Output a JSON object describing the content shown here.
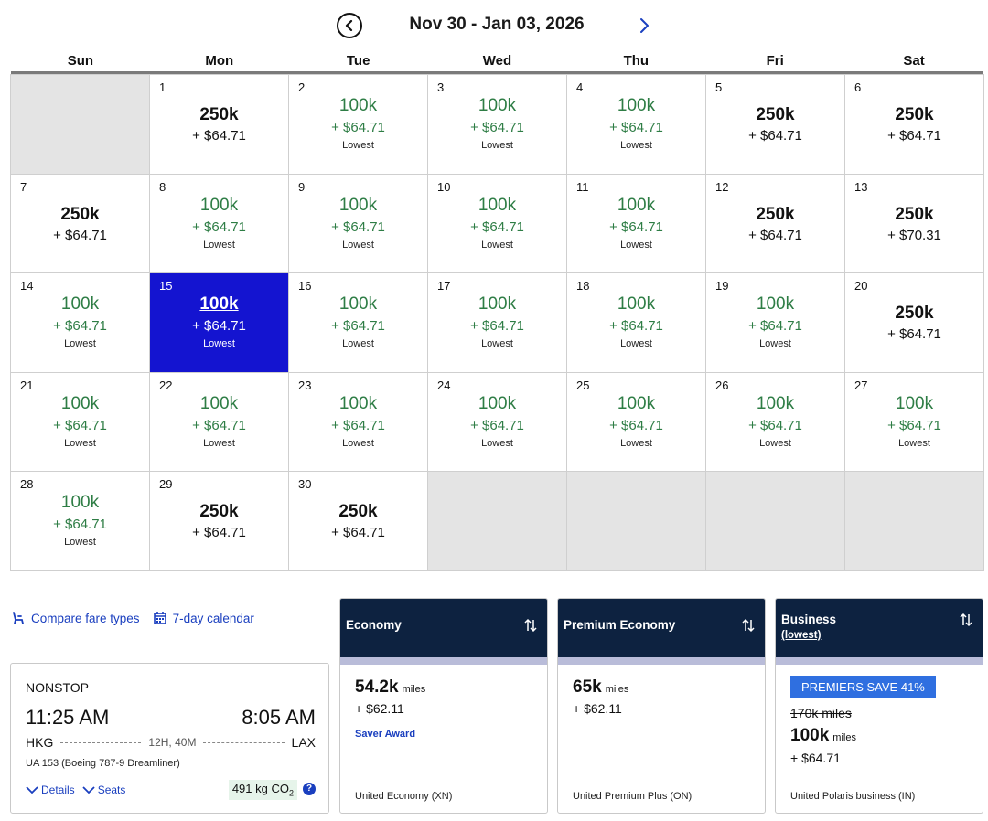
{
  "header": {
    "title": "Nov 30 - Jan 03, 2026"
  },
  "weekdays": [
    "Sun",
    "Mon",
    "Tue",
    "Wed",
    "Thu",
    "Fri",
    "Sat"
  ],
  "calendar": {
    "lowest_label": "Lowest",
    "selected_day": "15",
    "cells": [
      {
        "empty": true
      },
      {
        "day": "1",
        "miles": "250k",
        "cash": "+ $64.71",
        "lowest": false
      },
      {
        "day": "2",
        "miles": "100k",
        "cash": "+ $64.71",
        "lowest": true
      },
      {
        "day": "3",
        "miles": "100k",
        "cash": "+ $64.71",
        "lowest": true
      },
      {
        "day": "4",
        "miles": "100k",
        "cash": "+ $64.71",
        "lowest": true
      },
      {
        "day": "5",
        "miles": "250k",
        "cash": "+ $64.71",
        "lowest": false
      },
      {
        "day": "6",
        "miles": "250k",
        "cash": "+ $64.71",
        "lowest": false
      },
      {
        "day": "7",
        "miles": "250k",
        "cash": "+ $64.71",
        "lowest": false
      },
      {
        "day": "8",
        "miles": "100k",
        "cash": "+ $64.71",
        "lowest": true
      },
      {
        "day": "9",
        "miles": "100k",
        "cash": "+ $64.71",
        "lowest": true
      },
      {
        "day": "10",
        "miles": "100k",
        "cash": "+ $64.71",
        "lowest": true
      },
      {
        "day": "11",
        "miles": "100k",
        "cash": "+ $64.71",
        "lowest": true
      },
      {
        "day": "12",
        "miles": "250k",
        "cash": "+ $64.71",
        "lowest": false
      },
      {
        "day": "13",
        "miles": "250k",
        "cash": "+ $70.31",
        "lowest": false
      },
      {
        "day": "14",
        "miles": "100k",
        "cash": "+ $64.71",
        "lowest": true
      },
      {
        "day": "15",
        "miles": "100k",
        "cash": "+ $64.71",
        "lowest": true
      },
      {
        "day": "16",
        "miles": "100k",
        "cash": "+ $64.71",
        "lowest": true
      },
      {
        "day": "17",
        "miles": "100k",
        "cash": "+ $64.71",
        "lowest": true
      },
      {
        "day": "18",
        "miles": "100k",
        "cash": "+ $64.71",
        "lowest": true
      },
      {
        "day": "19",
        "miles": "100k",
        "cash": "+ $64.71",
        "lowest": true
      },
      {
        "day": "20",
        "miles": "250k",
        "cash": "+ $64.71",
        "lowest": false
      },
      {
        "day": "21",
        "miles": "100k",
        "cash": "+ $64.71",
        "lowest": true
      },
      {
        "day": "22",
        "miles": "100k",
        "cash": "+ $64.71",
        "lowest": true
      },
      {
        "day": "23",
        "miles": "100k",
        "cash": "+ $64.71",
        "lowest": true
      },
      {
        "day": "24",
        "miles": "100k",
        "cash": "+ $64.71",
        "lowest": true
      },
      {
        "day": "25",
        "miles": "100k",
        "cash": "+ $64.71",
        "lowest": true
      },
      {
        "day": "26",
        "miles": "100k",
        "cash": "+ $64.71",
        "lowest": true
      },
      {
        "day": "27",
        "miles": "100k",
        "cash": "+ $64.71",
        "lowest": true
      },
      {
        "day": "28",
        "miles": "100k",
        "cash": "+ $64.71",
        "lowest": true
      },
      {
        "day": "29",
        "miles": "250k",
        "cash": "+ $64.71",
        "lowest": false
      },
      {
        "day": "30",
        "miles": "250k",
        "cash": "+ $64.71",
        "lowest": false
      },
      {
        "empty": true
      },
      {
        "empty": true
      },
      {
        "empty": true
      },
      {
        "empty": true
      }
    ]
  },
  "links": {
    "compare": "Compare fare types",
    "calendar7": "7-day calendar"
  },
  "flight": {
    "stops": "NONSTOP",
    "depart_time": "11:25 AM",
    "arrive_time": "8:05 AM",
    "origin": "HKG",
    "destination": "LAX",
    "duration": "12H, 40M",
    "flight_info": "UA 153 (Boeing 787-9 Dreamliner)",
    "details_label": "Details",
    "seats_label": "Seats",
    "co2_value": "491 kg CO",
    "co2_sub": "2",
    "help": "?"
  },
  "fares": {
    "economy": {
      "name": "Economy",
      "miles": "54.2k",
      "miles_unit": "miles",
      "cash": "+ $62.11",
      "tag": "Saver Award",
      "code": "United Economy (XN)"
    },
    "premium": {
      "name": "Premium Economy",
      "miles": "65k",
      "miles_unit": "miles",
      "cash": "+ $62.11",
      "code": "United Premium Plus (ON)"
    },
    "business": {
      "name": "Business",
      "sub": "(lowest)",
      "badge": "PREMIERS SAVE 41%",
      "old_miles": "170k miles",
      "miles": "100k",
      "miles_unit": "miles",
      "cash": "+ $64.71",
      "code": "United Polaris business (IN)"
    }
  },
  "colors": {
    "accent": "#1a3fbf",
    "selected": "#1414d0",
    "lowest_green": "#2e7d45",
    "header_navy": "#0d2240",
    "badge_blue": "#2f6fe0",
    "empty_cell": "#e4e4e4"
  }
}
